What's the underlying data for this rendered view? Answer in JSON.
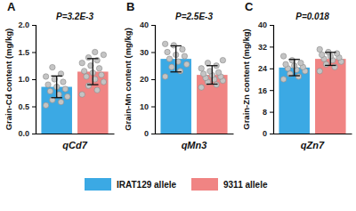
{
  "chart_data": [
    {
      "type": "bar",
      "title": "A",
      "annotations": [
        "P=3.2E-3"
      ],
      "y_label": "Grain-Cd content (mg/kg)",
      "categories": [
        "qCd7"
      ],
      "legend": "bottom",
      "ylim": [
        0,
        2
      ],
      "yticks": [
        {
          "value": 0,
          "label": "0.0"
        },
        {
          "value": 0.5,
          "label": "0.5"
        },
        {
          "value": 1,
          "label": "1.0"
        },
        {
          "value": 1.5,
          "label": "1.5"
        },
        {
          "value": 2,
          "label": "2.0"
        }
      ],
      "series": [
        {
          "name": "IRAT129 allele",
          "color": "#3ba9e4",
          "values": [
            0.86
          ],
          "errors": [
            0.2
          ],
          "points": [
            [
              0.52,
              0.58,
              0.62,
              0.68,
              0.72,
              0.78,
              0.82,
              0.86,
              0.9,
              0.95,
              1.0,
              1.05,
              1.1,
              1.22
            ]
          ]
        },
        {
          "name": "9311 allele",
          "color": "#f08483",
          "values": [
            1.14
          ],
          "errors": [
            0.24
          ],
          "points": [
            [
              0.72,
              0.8,
              0.88,
              0.95,
              1.0,
              1.05,
              1.08,
              1.12,
              1.15,
              1.2,
              1.25,
              1.3,
              1.35,
              1.4,
              1.45,
              1.5
            ]
          ]
        }
      ]
    },
    {
      "type": "bar",
      "title": "B",
      "annotations": [
        "P=2.5E-3"
      ],
      "y_label": "Grain-Mn content (mg/kg)",
      "categories": [
        "qMn3"
      ],
      "ylim": [
        0,
        40
      ],
      "yticks": [
        0,
        10,
        20,
        30,
        40
      ],
      "series": [
        {
          "color": "#3ba9e4",
          "values": [
            27.5
          ],
          "errors": [
            4.8
          ],
          "points": [
            [
              21,
              23,
              24.5,
              25.5,
              26.5,
              27.5,
              28.5,
              29,
              30,
              31,
              32.5,
              33
            ]
          ]
        },
        {
          "color": "#f08483",
          "values": [
            21.6
          ],
          "errors": [
            3.4
          ],
          "points": [
            [
              17,
              18,
              19,
              19.5,
              20,
              20.5,
              21,
              21.5,
              22,
              22.5,
              23,
              24,
              25,
              26,
              27
            ]
          ]
        }
      ]
    },
    {
      "type": "bar",
      "title": "C",
      "annotations": [
        "P=0.018"
      ],
      "y_label": "Grain-Zn content (mg/kg)",
      "categories": [
        "qZn7"
      ],
      "ylim": [
        0,
        40
      ],
      "yticks": [
        0,
        8,
        16,
        24,
        32,
        40
      ],
      "series": [
        {
          "color": "#3ba9e4",
          "values": [
            24.3
          ],
          "errors": [
            3.0
          ],
          "points": [
            [
              20,
              21,
              22,
              23,
              23.5,
              24,
              24.5,
              25,
              25.5,
              26,
              27,
              28.5
            ]
          ]
        },
        {
          "color": "#f08483",
          "values": [
            27.5
          ],
          "errors": [
            2.4
          ],
          "points": [
            [
              23,
              24.5,
              25.5,
              26.5,
              27,
              27.5,
              28,
              28.5,
              29,
              29.5,
              30,
              31
            ]
          ]
        }
      ]
    }
  ]
}
